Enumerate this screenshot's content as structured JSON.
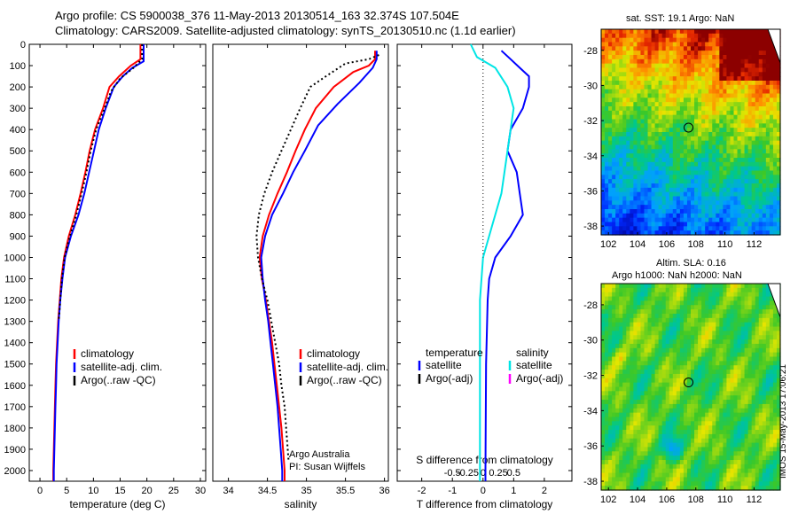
{
  "header": {
    "line1": "Argo profile: CS 5900038_376 11-May-2013 20130514_163 32.374S 107.504E",
    "line2": "Climatology: CARS2009. Satellite-adjusted climatology: synTS_20130510.nc (1.1d earlier)"
  },
  "colors": {
    "climatology": "#ff0000",
    "satellite": "#0000ff",
    "argo": "#000000",
    "salinity_sat": "#00e5e5",
    "salinity_argo": "#ff00ff"
  },
  "chart_data": [
    {
      "type": "line",
      "id": "temperature",
      "xlabel": "temperature (deg C)",
      "ylabel": "",
      "xlim": [
        -2,
        31
      ],
      "ylim": [
        2050,
        0
      ],
      "xticks": [
        0,
        5,
        10,
        15,
        20,
        25,
        30
      ],
      "yticks": [
        0,
        100,
        200,
        300,
        400,
        500,
        600,
        700,
        800,
        900,
        1000,
        1100,
        1200,
        1300,
        1400,
        1500,
        1600,
        1700,
        1800,
        1900,
        2000
      ],
      "series": [
        {
          "name": "climatology",
          "style": "solid",
          "color": "#ff0000",
          "points": [
            [
              18.8,
              0
            ],
            [
              18.8,
              70
            ],
            [
              17.0,
              100
            ],
            [
              14.8,
              150
            ],
            [
              13.0,
              200
            ],
            [
              11.8,
              300
            ],
            [
              10.3,
              400
            ],
            [
              9.3,
              500
            ],
            [
              8.5,
              600
            ],
            [
              7.6,
              700
            ],
            [
              6.6,
              800
            ],
            [
              5.4,
              900
            ],
            [
              4.5,
              1000
            ],
            [
              4.0,
              1100
            ],
            [
              3.7,
              1200
            ],
            [
              3.4,
              1300
            ],
            [
              3.2,
              1400
            ],
            [
              3.0,
              1500
            ],
            [
              2.9,
              1600
            ],
            [
              2.8,
              1700
            ],
            [
              2.7,
              1800
            ],
            [
              2.6,
              1900
            ],
            [
              2.5,
              2000
            ],
            [
              2.5,
              2050
            ]
          ]
        },
        {
          "name": "satellite-adj. clim.",
          "style": "solid",
          "color": "#0000ff",
          "points": [
            [
              19.4,
              0
            ],
            [
              19.4,
              80
            ],
            [
              17.3,
              110
            ],
            [
              15.5,
              150
            ],
            [
              13.8,
              200
            ],
            [
              12.3,
              300
            ],
            [
              11.0,
              400
            ],
            [
              10.1,
              500
            ],
            [
              9.2,
              600
            ],
            [
              8.3,
              700
            ],
            [
              7.2,
              800
            ],
            [
              5.8,
              900
            ],
            [
              4.7,
              1000
            ],
            [
              4.2,
              1100
            ],
            [
              3.8,
              1200
            ],
            [
              3.5,
              1300
            ],
            [
              3.3,
              1400
            ],
            [
              3.1,
              1500
            ],
            [
              3.0,
              1600
            ],
            [
              2.9,
              1700
            ],
            [
              2.8,
              1800
            ],
            [
              2.7,
              1900
            ],
            [
              2.6,
              2000
            ],
            [
              2.6,
              2050
            ]
          ]
        },
        {
          "name": "Argo(..raw -QC)",
          "style": "dotted",
          "color": "#000000",
          "points": [
            [
              19.1,
              0
            ],
            [
              19.1,
              70
            ],
            [
              17.5,
              110
            ],
            [
              15.0,
              160
            ],
            [
              13.3,
              220
            ],
            [
              12.1,
              300
            ],
            [
              10.5,
              400
            ],
            [
              9.5,
              500
            ],
            [
              8.7,
              600
            ],
            [
              7.8,
              700
            ],
            [
              6.8,
              800
            ],
            [
              5.6,
              900
            ],
            [
              4.6,
              1000
            ],
            [
              4.1,
              1100
            ],
            [
              3.8,
              1200
            ],
            [
              3.5,
              1300
            ]
          ]
        }
      ],
      "legend": [
        "climatology",
        "satellite-adj. clim.",
        "Argo(..raw -QC)"
      ],
      "legend_position": "lower-center"
    },
    {
      "type": "line",
      "id": "salinity",
      "xlabel": "salinity",
      "xlim": [
        33.8,
        36.05
      ],
      "ylim": [
        2050,
        0
      ],
      "xticks": [
        34,
        34.5,
        35,
        35.5,
        36
      ],
      "xtick_labels": [
        "34",
        "34.5",
        "35",
        "35.5",
        "36"
      ],
      "series": [
        {
          "name": "climatology",
          "style": "solid",
          "color": "#ff0000",
          "points": [
            [
              35.88,
              30
            ],
            [
              35.88,
              70
            ],
            [
              35.8,
              100
            ],
            [
              35.6,
              130
            ],
            [
              35.35,
              200
            ],
            [
              35.12,
              300
            ],
            [
              34.98,
              400
            ],
            [
              34.86,
              500
            ],
            [
              34.75,
              600
            ],
            [
              34.63,
              700
            ],
            [
              34.52,
              800
            ],
            [
              34.44,
              900
            ],
            [
              34.4,
              1000
            ],
            [
              34.43,
              1100
            ],
            [
              34.48,
              1200
            ],
            [
              34.52,
              1300
            ],
            [
              34.56,
              1400
            ],
            [
              34.59,
              1500
            ],
            [
              34.62,
              1600
            ],
            [
              34.65,
              1700
            ],
            [
              34.68,
              1800
            ],
            [
              34.7,
              1900
            ],
            [
              34.72,
              2000
            ],
            [
              34.72,
              2050
            ]
          ]
        },
        {
          "name": "satellite-adj. clim.",
          "style": "solid",
          "color": "#0000ff",
          "points": [
            [
              35.9,
              30
            ],
            [
              35.9,
              70
            ],
            [
              35.85,
              110
            ],
            [
              35.68,
              180
            ],
            [
              35.4,
              280
            ],
            [
              35.15,
              380
            ],
            [
              34.98,
              500
            ],
            [
              34.83,
              600
            ],
            [
              34.7,
              700
            ],
            [
              34.56,
              800
            ],
            [
              34.47,
              900
            ],
            [
              34.42,
              1000
            ],
            [
              34.44,
              1100
            ],
            [
              34.47,
              1200
            ],
            [
              34.51,
              1300
            ],
            [
              34.54,
              1400
            ],
            [
              34.57,
              1500
            ],
            [
              34.6,
              1600
            ],
            [
              34.63,
              1700
            ],
            [
              34.65,
              1800
            ],
            [
              34.67,
              1900
            ],
            [
              34.69,
              2000
            ],
            [
              34.69,
              2050
            ]
          ]
        },
        {
          "name": "Argo(..raw -QC)",
          "style": "dotted",
          "color": "#000000",
          "points": [
            [
              35.93,
              50
            ],
            [
              35.8,
              70
            ],
            [
              35.5,
              90
            ],
            [
              35.25,
              150
            ],
            [
              35.05,
              200
            ],
            [
              34.92,
              300
            ],
            [
              34.8,
              400
            ],
            [
              34.68,
              500
            ],
            [
              34.56,
              600
            ],
            [
              34.46,
              700
            ],
            [
              34.39,
              800
            ],
            [
              34.36,
              900
            ],
            [
              34.38,
              1000
            ],
            [
              34.43,
              1100
            ],
            [
              34.5,
              1200
            ],
            [
              34.55,
              1300
            ],
            [
              34.6,
              1400
            ],
            [
              34.65,
              1500
            ],
            [
              34.68,
              1600
            ],
            [
              34.72,
              1700
            ],
            [
              34.74,
              1800
            ],
            [
              34.76,
              1900
            ],
            [
              34.77,
              1950
            ]
          ]
        }
      ],
      "legend": [
        "climatology",
        "satellite-adj. clim.",
        "Argo(..raw -QC)"
      ],
      "legend_position": "lower-center",
      "annotation": [
        "Argo Australia",
        "PI: Susan Wijffels"
      ]
    },
    {
      "type": "line",
      "id": "difference",
      "title_bottom": "S difference from climatology",
      "xlabel": "T difference from climatology",
      "xlim": [
        -2.8,
        2.9
      ],
      "ylim": [
        2050,
        0
      ],
      "xticks_bottom": [
        -2,
        -1,
        0,
        1,
        2
      ],
      "s_ticks": [
        -0.5,
        -0.25,
        0,
        0.25,
        0.5
      ],
      "s_tick_labels": [
        "-0.5",
        "-0.25",
        "0",
        "0.25",
        "0.5"
      ],
      "series": [
        {
          "name": "temperature satellite",
          "style": "solid",
          "color": "#0000ff",
          "points": [
            [
              0.6,
              30
            ],
            [
              0.9,
              70
            ],
            [
              1.2,
              110
            ],
            [
              1.5,
              150
            ],
            [
              1.5,
              200
            ],
            [
              1.3,
              300
            ],
            [
              0.9,
              400
            ],
            [
              0.8,
              500
            ],
            [
              1.1,
              600
            ],
            [
              1.2,
              700
            ],
            [
              1.3,
              800
            ],
            [
              0.9,
              900
            ],
            [
              0.4,
              1000
            ],
            [
              0.2,
              1100
            ],
            [
              0.15,
              1200
            ],
            [
              0.1,
              1500
            ],
            [
              0.08,
              2000
            ],
            [
              0.08,
              2050
            ]
          ]
        },
        {
          "name": "salinity satellite",
          "style": "solid",
          "color": "#00e5e5",
          "points": [
            [
              -0.4,
              0
            ],
            [
              -0.2,
              60
            ],
            [
              0.4,
              110
            ],
            [
              0.8,
              200
            ],
            [
              1.0,
              300
            ],
            [
              0.8,
              500
            ],
            [
              0.6,
              700
            ],
            [
              0.3,
              850
            ],
            [
              0.0,
              1000
            ],
            [
              -0.1,
              1200
            ],
            [
              -0.1,
              2050
            ]
          ]
        },
        {
          "name": "zero",
          "style": "dotted",
          "color": "#000000",
          "points": [
            [
              0,
              0
            ],
            [
              0,
              1000
            ]
          ]
        }
      ],
      "legend_temperature": {
        "heading": "temperature",
        "items": [
          "satellite",
          "Argo(-adj)"
        ]
      },
      "legend_salinity": {
        "heading": "salinity",
        "items": [
          "satellite",
          "Argo(-adj)"
        ]
      }
    },
    {
      "type": "heatmap",
      "id": "sst-map",
      "title": "sat. SST: 19.1 Argo: NaN",
      "xlim": [
        101.5,
        113.8
      ],
      "ylim": [
        -38.5,
        -26.8
      ],
      "xticks": [
        102,
        104,
        106,
        108,
        110,
        112
      ],
      "yticks": [
        -28,
        -30,
        -32,
        -34,
        -36,
        -38
      ],
      "marker": [
        107.5,
        -32.4
      ]
    },
    {
      "type": "heatmap",
      "id": "sla-map",
      "title_lines": [
        "Altim. SLA: 0.16",
        "Argo h1000: NaN h2000: NaN"
      ],
      "xlim": [
        101.5,
        113.8
      ],
      "ylim": [
        -38.5,
        -26.8
      ],
      "xticks": [
        102,
        104,
        106,
        108,
        110,
        112
      ],
      "yticks": [
        -28,
        -30,
        -32,
        -34,
        -36,
        -38
      ],
      "marker": [
        107.5,
        -32.4
      ]
    }
  ],
  "stamp": "IMOS 15-May-2013 17:06:21"
}
